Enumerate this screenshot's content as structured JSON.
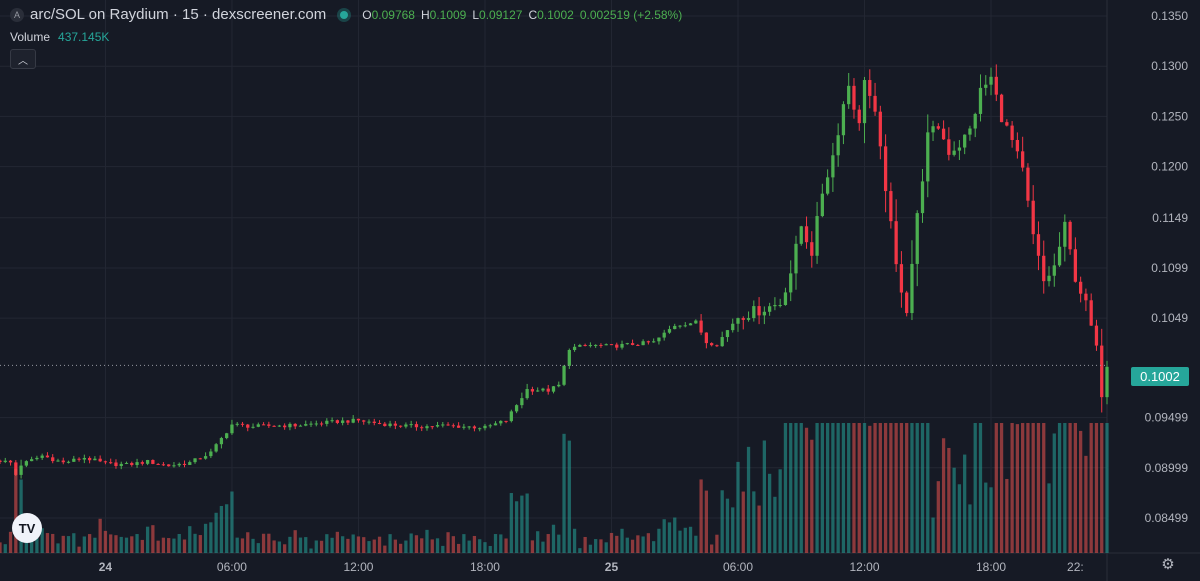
{
  "header": {
    "symbol_icon": "A",
    "title": "arc/SOL on Raydium · 15 · dexscreener.com",
    "ohlc": {
      "o_label": "O",
      "o_value": "0.09768",
      "h_label": "H",
      "h_value": "0.1009",
      "l_label": "L",
      "l_value": "0.09127",
      "c_label": "C",
      "c_value": "0.1002",
      "change": "0.002519 (+2.58%)"
    }
  },
  "volume": {
    "label": "Volume",
    "value": "437.145K"
  },
  "collapse_icon": "chevron-up-icon",
  "collapse_glyph": "︿",
  "logo_text": "TV",
  "settings_glyph": "⚙",
  "current_price": "0.1002",
  "colors": {
    "up": "#4caf50",
    "down": "#f23645",
    "vol_up": "#26a69a",
    "vol_down": "#ef5350",
    "background": "#161a25",
    "grid": "#232733"
  },
  "chart_data": {
    "type": "candlestick",
    "y_tick_labels": [
      "0.1350",
      "0.1300",
      "0.1250",
      "0.1200",
      "0.1149",
      "0.1099",
      "0.1049",
      "0.09499",
      "0.08999",
      "0.08499"
    ],
    "y_tick_values": [
      0.135,
      0.13,
      0.125,
      0.12,
      0.1149,
      0.1099,
      0.1049,
      0.09499,
      0.08999,
      0.08499
    ],
    "ylim": [
      0.0815,
      0.1366
    ],
    "x_tick_labels": [
      "24",
      "06:00",
      "12:00",
      "18:00",
      "25",
      "06:00",
      "12:00",
      "18:00",
      "22:"
    ],
    "x_tick_hours": [
      0,
      6,
      12,
      18,
      24,
      30,
      36,
      42,
      46
    ],
    "x_range_hours": [
      -5.0,
      47.5
    ],
    "bar_hours": 0.25,
    "start_hour": -5.0,
    "current_price": 0.1002,
    "grid": true,
    "anchors": [
      [
        -5.0,
        0.0907
      ],
      [
        -4.5,
        0.0905
      ],
      [
        -4.25,
        0.0893
      ],
      [
        -4.0,
        0.0903
      ],
      [
        -3.0,
        0.0912
      ],
      [
        -2.0,
        0.0905
      ],
      [
        -1.0,
        0.091
      ],
      [
        0.0,
        0.0904
      ],
      [
        1.0,
        0.0903
      ],
      [
        2.0,
        0.0906
      ],
      [
        3.0,
        0.0902
      ],
      [
        4.0,
        0.0905
      ],
      [
        5.0,
        0.0915
      ],
      [
        6.0,
        0.0943
      ],
      [
        7.0,
        0.0941
      ],
      [
        8.0,
        0.0942
      ],
      [
        9.0,
        0.0942
      ],
      [
        10.0,
        0.0944
      ],
      [
        11.0,
        0.0946
      ],
      [
        12.0,
        0.0947
      ],
      [
        13.0,
        0.0944
      ],
      [
        14.0,
        0.0942
      ],
      [
        15.0,
        0.0941
      ],
      [
        16.0,
        0.0942
      ],
      [
        17.0,
        0.0941
      ],
      [
        18.0,
        0.094
      ],
      [
        19.0,
        0.0947
      ],
      [
        20.0,
        0.0978
      ],
      [
        21.0,
        0.0977
      ],
      [
        21.5,
        0.0982
      ],
      [
        22.0,
        0.1019
      ],
      [
        23.0,
        0.1022
      ],
      [
        24.0,
        0.1021
      ],
      [
        25.0,
        0.1023
      ],
      [
        26.0,
        0.1025
      ],
      [
        27.0,
        0.1042
      ],
      [
        28.0,
        0.1045
      ],
      [
        28.5,
        0.1025
      ],
      [
        29.0,
        0.1023
      ],
      [
        30.0,
        0.1051
      ],
      [
        31.0,
        0.1057
      ],
      [
        32.0,
        0.1064
      ],
      [
        32.5,
        0.1095
      ],
      [
        33.0,
        0.1141
      ],
      [
        33.5,
        0.1115
      ],
      [
        34.0,
        0.1175
      ],
      [
        34.5,
        0.1211
      ],
      [
        35.0,
        0.1262
      ],
      [
        35.25,
        0.1282
      ],
      [
        35.75,
        0.124
      ],
      [
        36.0,
        0.129
      ],
      [
        36.5,
        0.125
      ],
      [
        37.0,
        0.118
      ],
      [
        37.5,
        0.11
      ],
      [
        38.0,
        0.1058
      ],
      [
        38.5,
        0.115
      ],
      [
        39.0,
        0.123
      ],
      [
        39.5,
        0.124
      ],
      [
        40.0,
        0.1215
      ],
      [
        40.5,
        0.1222
      ],
      [
        41.0,
        0.1236
      ],
      [
        41.5,
        0.1275
      ],
      [
        42.0,
        0.1288
      ],
      [
        42.5,
        0.125
      ],
      [
        43.0,
        0.1225
      ],
      [
        43.5,
        0.1195
      ],
      [
        44.0,
        0.113
      ],
      [
        44.5,
        0.1085
      ],
      [
        45.0,
        0.11
      ],
      [
        45.5,
        0.114
      ],
      [
        46.0,
        0.109
      ],
      [
        46.5,
        0.1062
      ],
      [
        47.0,
        0.102
      ],
      [
        47.25,
        0.0972
      ],
      [
        47.5,
        0.1002
      ]
    ]
  }
}
